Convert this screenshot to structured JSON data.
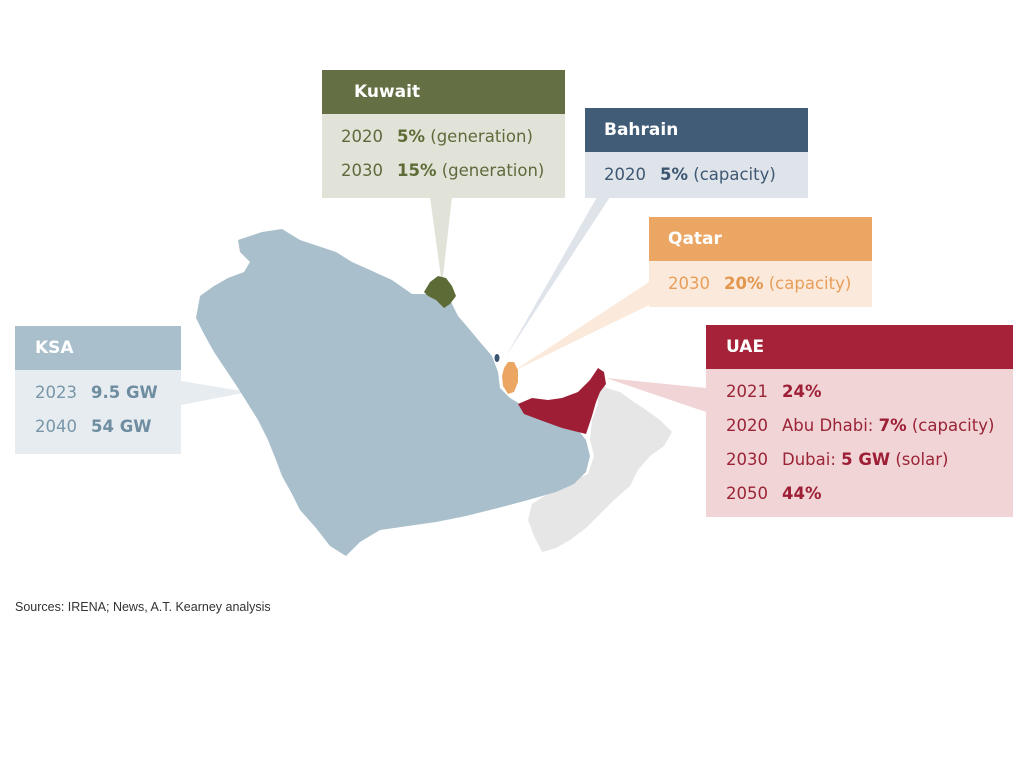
{
  "regions": {
    "kuwait": {
      "name": "Kuwait",
      "color": "#647043",
      "targets": [
        {
          "year": "2020",
          "value": "5%",
          "note": "(generation)"
        },
        {
          "year": "2030",
          "value": "15%",
          "note": "(generation)"
        }
      ]
    },
    "bahrain": {
      "name": "Bahrain",
      "color": "#415c77",
      "targets": [
        {
          "year": "2020",
          "value": "5%",
          "note": "(capacity)"
        }
      ]
    },
    "qatar": {
      "name": "Qatar",
      "color": "#eca664",
      "targets": [
        {
          "year": "2030",
          "value": "20%",
          "note": "(capacity)"
        }
      ]
    },
    "ksa": {
      "name": "KSA",
      "color": "#a9bfcb",
      "targets": [
        {
          "year": "2023",
          "value": "9.5 GW"
        },
        {
          "year": "2040",
          "value": "54 GW"
        }
      ]
    },
    "uae": {
      "name": "UAE",
      "color": "#a52238",
      "targets": [
        {
          "year": "2021",
          "value": "24%"
        },
        {
          "year": "2020",
          "prefix": "Abu Dhabi:",
          "value": "7%",
          "note": "(capacity)"
        },
        {
          "year": "2030",
          "prefix": "Dubai:",
          "value": "5 GW",
          "note": "(solar)"
        },
        {
          "year": "2050",
          "value": "44%"
        }
      ]
    },
    "oman": {
      "color": "#e6e6e6"
    }
  },
  "sources": "Sources: IRENA; News, A.T. Kearney analysis"
}
